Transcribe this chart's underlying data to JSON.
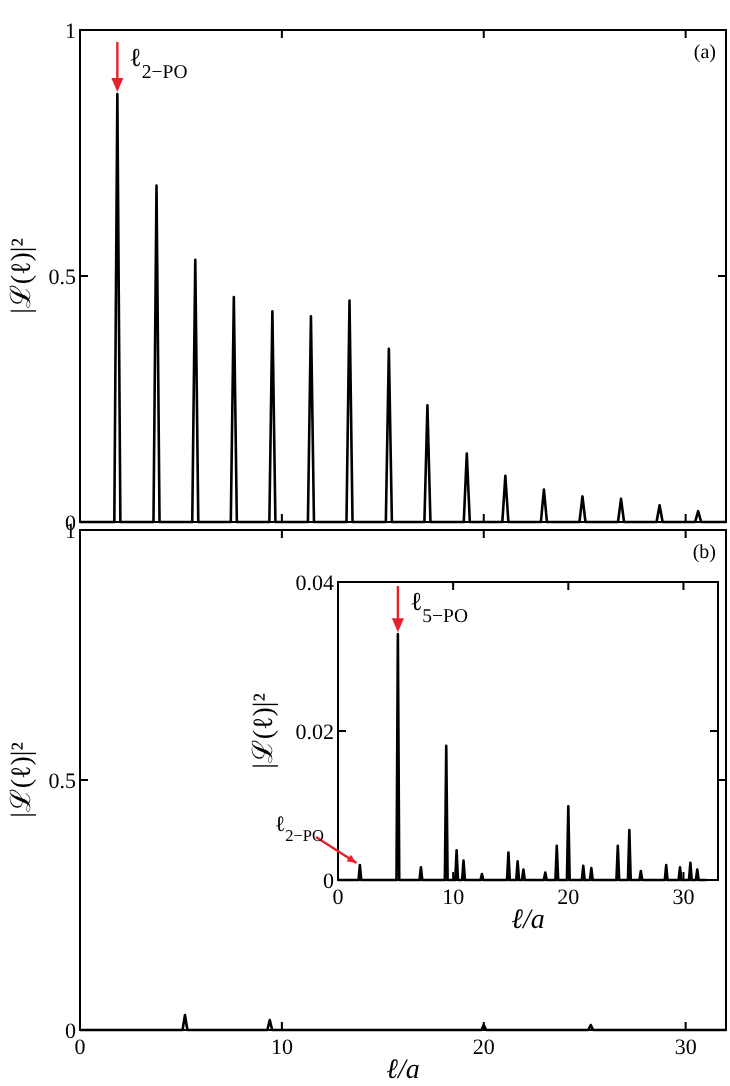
{
  "chart_data": [
    {
      "type": "line",
      "ylabel": "|ℒ(ℓ)|²",
      "xlim": [
        0,
        32
      ],
      "ylim": [
        0,
        1
      ],
      "xticks": [
        0,
        10,
        20,
        30
      ],
      "yticks": [
        0,
        0.5,
        1
      ],
      "tick_labels": "y",
      "grid": false,
      "marker": "none",
      "line_style": "solid",
      "annotations": [
        "(a)",
        {
          "text": "ℓ$_{2−PO}$",
          "x": 1.85,
          "y": 0.87
        }
      ],
      "series": [
        {
          "color": "#000000",
          "x": [
            0,
            1.7,
            1.85,
            2.0,
            3.64,
            3.79,
            3.94,
            5.56,
            5.71,
            5.86,
            7.47,
            7.62,
            7.77,
            9.38,
            9.53,
            9.68,
            11.29,
            11.44,
            11.59,
            13.2,
            13.35,
            13.5,
            15.15,
            15.3,
            15.45,
            17.06,
            17.21,
            17.36,
            19.01,
            19.16,
            19.31,
            20.92,
            21.07,
            21.22,
            22.83,
            22.98,
            23.13,
            24.74,
            24.89,
            25.04,
            26.65,
            26.8,
            26.95,
            28.56,
            28.71,
            28.86,
            30.47,
            30.62,
            30.77,
            32
          ],
          "values": [
            0,
            0,
            0.87,
            0,
            0,
            0.684,
            0,
            0,
            0.533,
            0,
            0,
            0.457,
            0,
            0,
            0.428,
            0,
            0,
            0.418,
            0,
            0,
            0.45,
            0,
            0,
            0.352,
            0,
            0,
            0.237,
            0,
            0,
            0.139,
            0,
            0,
            0.094,
            0,
            0,
            0.066,
            0,
            0,
            0.052,
            0,
            0,
            0.047,
            0,
            0,
            0.034,
            0,
            0,
            0.022,
            0,
            0
          ]
        }
      ]
    },
    {
      "type": "line",
      "xlabel": "ℓ/a",
      "ylabel": "|ℒ(ℓ)|²",
      "xlim": [
        0,
        32
      ],
      "ylim": [
        0,
        1
      ],
      "xticks": [
        0,
        10,
        20,
        30
      ],
      "yticks": [
        0,
        0.5,
        1
      ],
      "grid": false,
      "marker": "none",
      "line_style": "solid",
      "annotations": [
        "(b)"
      ],
      "series": [
        {
          "color": "#000000",
          "x": [
            0,
            5.08,
            5.2,
            5.32,
            9.28,
            9.4,
            9.52,
            19.88,
            20.0,
            20.12,
            25.18,
            25.3,
            25.42,
            32
          ],
          "values": [
            0,
            0,
            0.03,
            0,
            0,
            0.02,
            0,
            0,
            0.01,
            0,
            0,
            0.01,
            0,
            0
          ]
        }
      ]
    },
    {
      "type": "line",
      "xlabel": "ℓ/a",
      "ylabel": "|ℒ(ℓ)|²",
      "xlim": [
        0,
        33
      ],
      "ylim": [
        0,
        0.04
      ],
      "xticks": [
        0,
        10,
        20,
        30
      ],
      "yticks": [
        0,
        0.02,
        0.04
      ],
      "grid": false,
      "marker": "none",
      "line_style": "solid",
      "annotations": [
        {
          "text": "ℓ$_{5−PO}$",
          "x": 5.2,
          "y": 0.033
        },
        {
          "text": "ℓ$_{2−PO}$",
          "x": 1.9,
          "y": 0.002
        }
      ],
      "series": [
        {
          "color": "#000000",
          "x": [
            0,
            1.78,
            1.9,
            2.02,
            5.08,
            5.2,
            5.32,
            7.08,
            7.2,
            7.32,
            9.28,
            9.4,
            9.52,
            10.18,
            10.3,
            10.42,
            10.78,
            10.9,
            11.02,
            12.38,
            12.5,
            12.62,
            14.68,
            14.8,
            14.92,
            15.48,
            15.6,
            15.72,
            15.98,
            16.1,
            16.22,
            17.88,
            18.0,
            18.12,
            18.88,
            19.0,
            19.12,
            19.88,
            20.0,
            20.12,
            21.18,
            21.3,
            21.42,
            21.88,
            22.0,
            22.12,
            24.18,
            24.3,
            24.42,
            25.18,
            25.3,
            25.42,
            26.18,
            26.3,
            26.42,
            28.38,
            28.5,
            28.62,
            29.58,
            29.7,
            29.82,
            30.48,
            30.6,
            30.72,
            31.08,
            31.2,
            31.32,
            32
          ],
          "values": [
            0,
            0,
            0.002,
            0,
            0,
            0.033,
            0,
            0,
            0.0017,
            0,
            0,
            0.018,
            0,
            0,
            0.004,
            0,
            0,
            0.0026,
            0,
            0,
            0.0008,
            0,
            0,
            0.0037,
            0,
            0,
            0.0025,
            0,
            0,
            0.0014,
            0,
            0,
            0.001,
            0,
            0,
            0.0046,
            0,
            0,
            0.0099,
            0,
            0,
            0.0019,
            0,
            0,
            0.0016,
            0,
            0,
            0.0046,
            0,
            0,
            0.0067,
            0,
            0,
            0.0012,
            0,
            0,
            0.002,
            0,
            0,
            0.0017,
            0,
            0,
            0.0023,
            0,
            0,
            0.0014,
            0,
            0
          ]
        }
      ]
    }
  ]
}
